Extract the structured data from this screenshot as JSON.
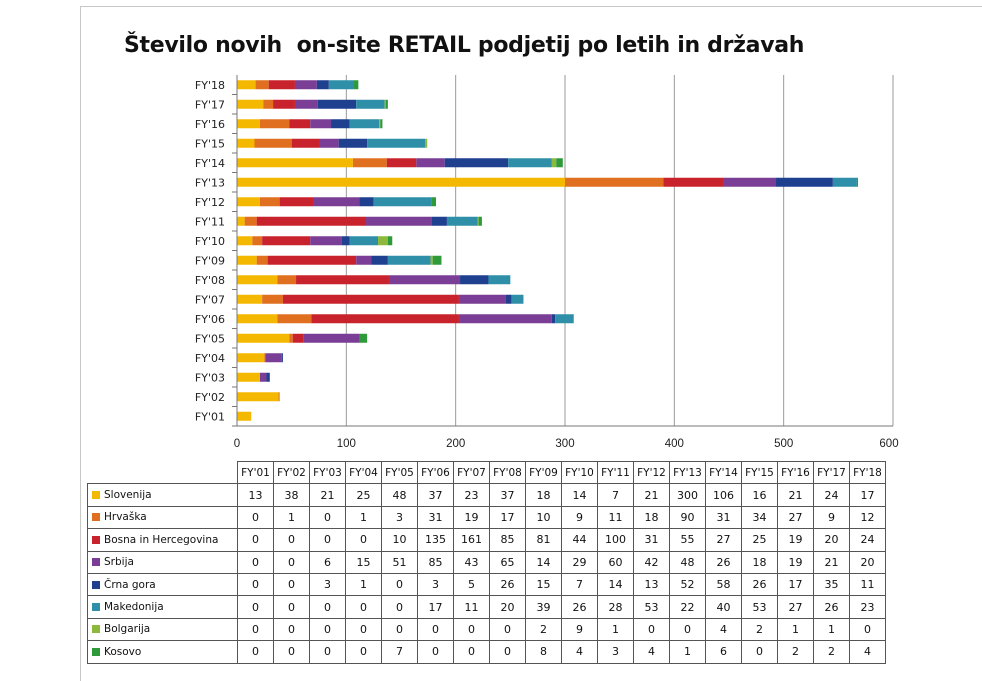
{
  "chart_data": {
    "type": "bar",
    "orientation": "horizontal",
    "stacked": true,
    "title": "Število novih  on-site RETAIL podjetij po letih in državah",
    "categories": [
      "FY'01",
      "FY'02",
      "FY'03",
      "FY'04",
      "FY'05",
      "FY'06",
      "FY'07",
      "FY'08",
      "FY'09",
      "FY'10",
      "FY'11",
      "FY'12",
      "FY'13",
      "FY'14",
      "FY'15",
      "FY'16",
      "FY'17",
      "FY'18"
    ],
    "xlim": [
      0,
      600
    ],
    "xticks": [
      0,
      100,
      200,
      300,
      400,
      500,
      600
    ],
    "grid": "vertical",
    "legend": "table-below",
    "series": [
      {
        "name": "Slovenija",
        "color": "#f5b800",
        "values": [
          13,
          38,
          21,
          25,
          48,
          37,
          23,
          37,
          18,
          14,
          7,
          21,
          300,
          106,
          16,
          21,
          24,
          17
        ]
      },
      {
        "name": "Hrvaška",
        "color": "#e07020",
        "values": [
          0,
          1,
          0,
          1,
          3,
          31,
          19,
          17,
          10,
          9,
          11,
          18,
          90,
          31,
          34,
          27,
          9,
          12
        ]
      },
      {
        "name": "Bosna in Hercegovina",
        "color": "#c8232c",
        "values": [
          0,
          0,
          0,
          0,
          10,
          135,
          161,
          85,
          81,
          44,
          100,
          31,
          55,
          27,
          25,
          19,
          20,
          24
        ]
      },
      {
        "name": "Srbija",
        "color": "#7a3e96",
        "values": [
          0,
          0,
          6,
          15,
          51,
          85,
          43,
          65,
          14,
          29,
          60,
          42,
          48,
          26,
          18,
          19,
          21,
          20
        ]
      },
      {
        "name": "Črna gora",
        "color": "#1f3f8f",
        "values": [
          0,
          0,
          3,
          1,
          0,
          3,
          5,
          26,
          15,
          7,
          14,
          13,
          52,
          58,
          26,
          17,
          35,
          11
        ]
      },
      {
        "name": "Makedonija",
        "color": "#2f8fa8",
        "values": [
          0,
          0,
          0,
          0,
          0,
          17,
          11,
          20,
          39,
          26,
          28,
          53,
          22,
          40,
          53,
          27,
          26,
          23
        ]
      },
      {
        "name": "Bolgarija",
        "color": "#8cb83c",
        "values": [
          0,
          0,
          0,
          0,
          0,
          0,
          0,
          0,
          2,
          9,
          1,
          0,
          0,
          4,
          2,
          1,
          1,
          0
        ]
      },
      {
        "name": "Kosovo",
        "color": "#2e9a3a",
        "values": [
          0,
          0,
          0,
          0,
          7,
          0,
          0,
          0,
          8,
          4,
          3,
          4,
          1,
          6,
          0,
          2,
          2,
          4
        ]
      }
    ]
  }
}
